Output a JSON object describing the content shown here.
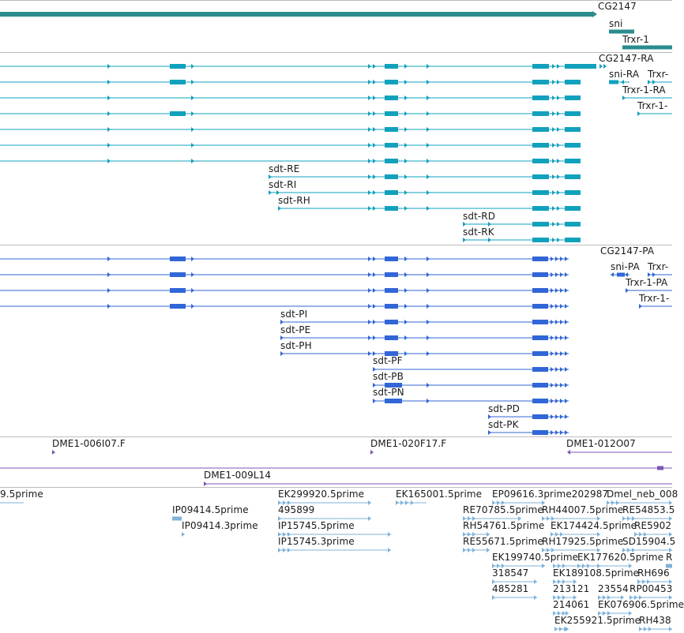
{
  "colors": {
    "gene": "#2a8c8c",
    "transcript": "#12a1bd",
    "protein": "#3166d6",
    "clone": "#7a56b4",
    "est": "#7fb3da",
    "separator": "#bdbdbd"
  },
  "gene_track": {
    "labels": [
      "CG2147",
      "sni",
      "Trxr-1"
    ]
  },
  "transcript_track": {
    "labels": [
      "CG2147-RA",
      "sni-RA",
      "Trxr-",
      "Trxr-1-RA",
      "Trxr-1-",
      "sdt-RE",
      "sdt-RI",
      "sdt-RH",
      "sdt-RD",
      "sdt-RK"
    ]
  },
  "protein_track": {
    "labels": [
      "CG2147-PA",
      "sni-PA",
      "Trxr-",
      "Trxr-1-PA",
      "Trxr-1-",
      "sdt-PI",
      "sdt-PE",
      "sdt-PH",
      "sdt-PF",
      "sdt-PB",
      "sdt-PN",
      "sdt-PD",
      "sdt-PK"
    ]
  },
  "clone_track": {
    "labels": [
      "DME1-006I07.F",
      "DME1-020F17.F",
      "DME1-012O07",
      "DME1-009L14"
    ]
  },
  "est_track": {
    "labels": [
      "9.5prime",
      "IP09414.5prime",
      "IP09414.3prime",
      "EK299920.5prime",
      "495899",
      "IP15745.5prime",
      "IP15745.3prime",
      "EK165001.5prime",
      "EP09616.3prime202987",
      "Dmel_neb_008",
      "RE70785.5prime",
      "RH44007.5prime",
      "RE54853.5",
      "RH54761.5prime",
      "EK174424.5prime",
      "RE5902",
      "RE55671.5prime",
      "RH17925.5prime",
      "SD15904.5",
      "EK199740.5prime",
      "EK177620.5prime",
      "R",
      "318547",
      "EK189108.5prime",
      "RH696",
      "485281",
      "213121",
      "23554",
      "RP00453",
      "214061",
      "EK076906.5prime",
      "EK255921.5prime",
      "RH438"
    ]
  }
}
